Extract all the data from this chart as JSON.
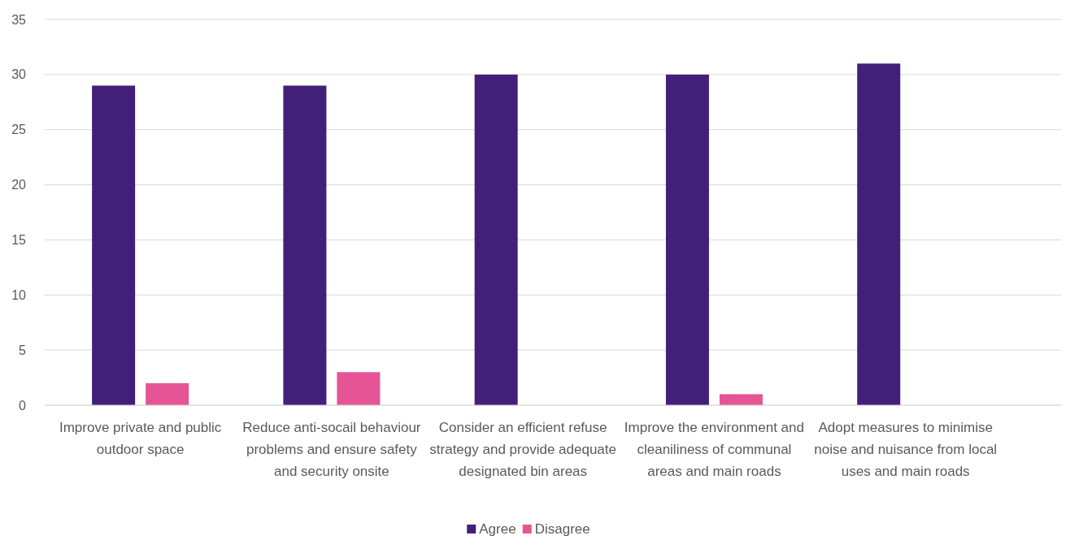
{
  "chart_data": {
    "type": "bar",
    "categories": [
      "Improve private and public outdoor space",
      "Reduce anti-socail behaviour problems and ensure safety and security onsite",
      "Consider an efficient refuse strategy and provide adequate designated bin areas",
      "Improve the environment and cleaniliness of communal areas and main roads",
      "Adopt measures to minimise noise and nuisance from local uses and main roads"
    ],
    "series": [
      {
        "name": "Agree",
        "color": "#42207a",
        "values": [
          29,
          29,
          30,
          30,
          31
        ]
      },
      {
        "name": "Disagree",
        "color": "#e55595",
        "values": [
          2,
          3,
          0,
          1,
          0
        ]
      }
    ],
    "ylim": [
      0,
      35
    ],
    "yticks": [
      0,
      5,
      10,
      15,
      20,
      25,
      30,
      35
    ],
    "grid": "y",
    "legend": "bottom"
  }
}
